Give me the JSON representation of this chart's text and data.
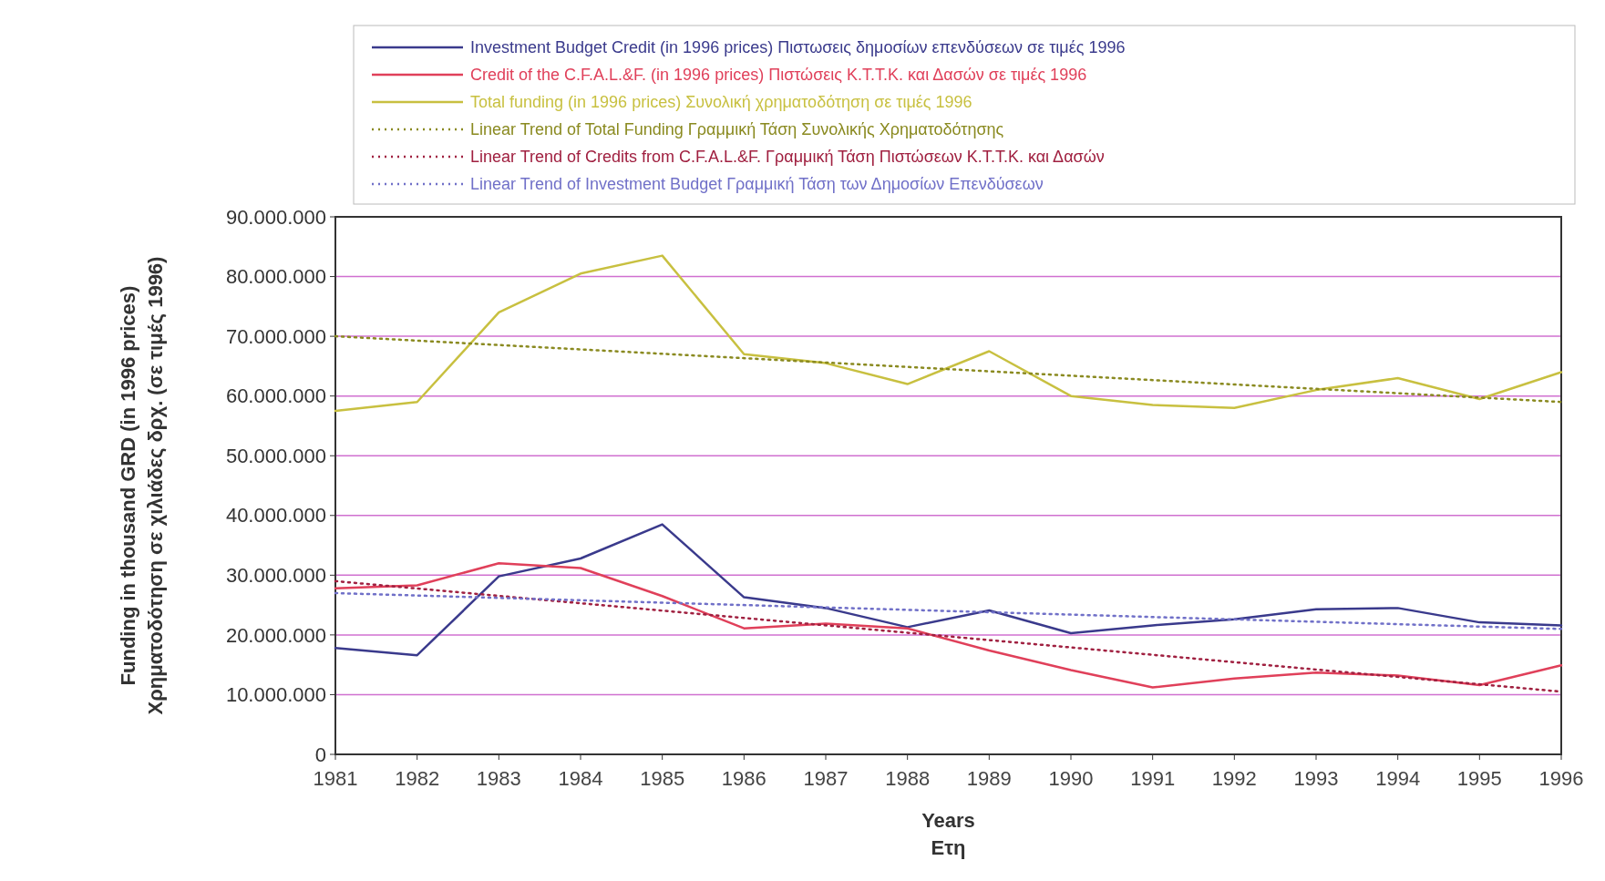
{
  "chart_data": {
    "type": "line",
    "xlabel": "Years\nΕτη",
    "ylabel": "Funding in thousand GRD (in 1996 prices)\nΧρηματοδότηση σε χιλιάδες δρχ. (σε τιμές 1996)",
    "categories": [
      "1981",
      "1982",
      "1983",
      "1984",
      "1985",
      "1986",
      "1987",
      "1988",
      "1989",
      "1990",
      "1991",
      "1992",
      "1993",
      "1994",
      "1995",
      "1996"
    ],
    "ylim": [
      0,
      90000000
    ],
    "yticks": [
      {
        "value": 0,
        "label": "0"
      },
      {
        "value": 10000000,
        "label": "10.000.000"
      },
      {
        "value": 20000000,
        "label": "20.000.000"
      },
      {
        "value": 30000000,
        "label": "30.000.000"
      },
      {
        "value": 40000000,
        "label": "40.000.000"
      },
      {
        "value": 50000000,
        "label": "50.000.000"
      },
      {
        "value": 60000000,
        "label": "60.000.000"
      },
      {
        "value": 70000000,
        "label": "70.000.000"
      },
      {
        "value": 80000000,
        "label": "80.000.000"
      },
      {
        "value": 90000000,
        "label": "90.000.000"
      }
    ],
    "grid": "y",
    "legend": "top",
    "series": [
      {
        "name": "Investment Budget Credit (in 1996 prices) Πιστωσεις δημοσίων επενδύσεων σε τιμές 1996",
        "color": "#3a3a8c",
        "line_style": "solid",
        "values": [
          17800000,
          16600000,
          29800000,
          32800000,
          38500000,
          26300000,
          24500000,
          21300000,
          24100000,
          20300000,
          21600000,
          22600000,
          24300000,
          24500000,
          22100000,
          21600000
        ]
      },
      {
        "name": "Credit of the C.F.A.L.&F. (in 1996 prices) Πιστώσεις Κ.Τ.Τ.Κ. και Δασών σε τιμές 1996",
        "color": "#e0405a",
        "line_style": "solid",
        "values": [
          27800000,
          28300000,
          32000000,
          31200000,
          26500000,
          21100000,
          21900000,
          21100000,
          17400000,
          14100000,
          11200000,
          12700000,
          13700000,
          13200000,
          11600000,
          14900000
        ]
      },
      {
        "name": "Total funding (in 1996 prices) Συνολική χρηματοδότηση σε τιμές 1996",
        "color": "#c8c040",
        "line_style": "solid",
        "values": [
          57500000,
          59000000,
          74000000,
          80500000,
          83500000,
          67000000,
          65500000,
          62000000,
          67500000,
          60000000,
          58500000,
          58000000,
          61000000,
          63000000,
          59500000,
          64000000
        ]
      },
      {
        "name": "Linear Trend of Total Funding  Γραμμική Τάση Συνολικής Χρηματοδότησης",
        "color": "#8a8a20",
        "line_style": "dotted",
        "values": [
          70000000,
          null,
          null,
          null,
          null,
          null,
          null,
          null,
          null,
          null,
          null,
          null,
          null,
          null,
          null,
          59000000
        ]
      },
      {
        "name": "Linear Trend of Credits from C.F.A.L.&F. Γραμμική Τάση Πιστώσεων Κ.Τ.Τ.Κ. και Δασών",
        "color": "#a02040",
        "line_style": "dotted",
        "values": [
          29000000,
          null,
          null,
          null,
          null,
          null,
          null,
          null,
          null,
          null,
          null,
          null,
          null,
          null,
          null,
          10500000
        ]
      },
      {
        "name": "Linear Trend of Investment Budget Γραμμική Τάση των Δημοσίων Επενδύσεων",
        "color": "#7070c8",
        "line_style": "dotted",
        "values": [
          27000000,
          null,
          null,
          null,
          null,
          null,
          null,
          null,
          null,
          null,
          null,
          null,
          null,
          null,
          null,
          21000000
        ]
      }
    ]
  }
}
